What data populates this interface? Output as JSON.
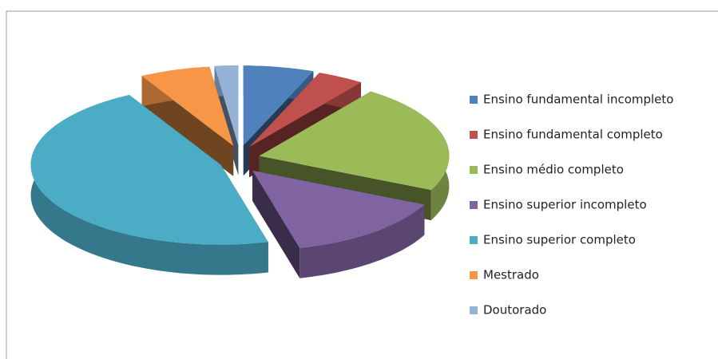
{
  "chart_data": {
    "type": "pie",
    "categories": [
      "Ensino fundamental incompleto",
      "Ensino fundamental completo",
      "Ensino médio completo",
      "Ensino superior incompleto",
      "Ensino superior completo",
      "Mestrado",
      "Doutorado"
    ],
    "values": [
      6,
      4,
      22,
      14,
      46,
      6,
      2
    ],
    "colors": [
      "#4f81bd",
      "#c0504d",
      "#9bbb59",
      "#8064a2",
      "#4bacc6",
      "#f79646",
      "#95b3d7"
    ]
  }
}
